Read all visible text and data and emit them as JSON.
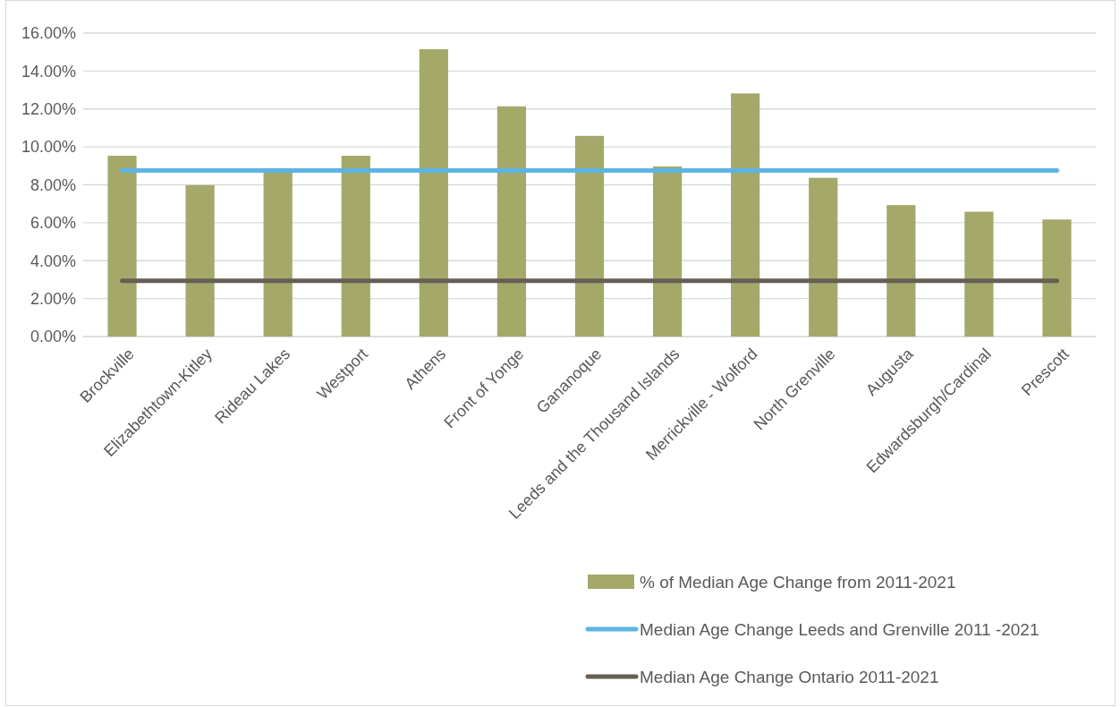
{
  "chart_data": {
    "type": "bar",
    "categories": [
      "Brockville",
      "Elizabethtown-Kitley",
      "Rideau Lakes",
      "Westport",
      "Athens",
      "Front of Yonge",
      "Gananoque",
      "Leeds and the Thousand Islands",
      "Merrickville - Wolford",
      "North Grenville",
      "Augusta",
      "Edwardsburgh/Cardinal",
      "Prescott"
    ],
    "series": [
      {
        "name": "% of Median Age Change from 2011-2021",
        "color": "#a4a96a",
        "values": [
          9.53,
          7.98,
          8.77,
          9.53,
          15.15,
          12.14,
          10.58,
          8.97,
          12.82,
          8.37,
          6.93,
          6.58,
          6.17
        ]
      },
      {
        "name": "Median Age Change Leeds and Grenville 2011 -2021",
        "type": "line",
        "color": "#5db4e4",
        "values": [
          8.75,
          8.75,
          8.75,
          8.75,
          8.75,
          8.75,
          8.75,
          8.75,
          8.75,
          8.75,
          8.75,
          8.75,
          8.75
        ]
      },
      {
        "name": "Median Age Change Ontario 2011-2021",
        "type": "line",
        "color": "#675e55",
        "values": [
          2.94,
          2.94,
          2.94,
          2.94,
          2.94,
          2.94,
          2.94,
          2.94,
          2.94,
          2.94,
          2.94,
          2.94,
          2.94
        ]
      }
    ],
    "ylim": [
      0,
      16
    ],
    "yticks": [
      {
        "value": 0,
        "label": "0.00%"
      },
      {
        "value": 2,
        "label": "2.00%"
      },
      {
        "value": 4,
        "label": "4.00%"
      },
      {
        "value": 6,
        "label": "6.00%"
      },
      {
        "value": 8,
        "label": "8.00%"
      },
      {
        "value": 10,
        "label": "10.00%"
      },
      {
        "value": 12,
        "label": "12.00%"
      },
      {
        "value": 14,
        "label": "14.00%"
      },
      {
        "value": 16,
        "label": "16.00%"
      }
    ],
    "grid": "y",
    "legend": "bottom",
    "marker": "none",
    "line_style": "solid"
  }
}
